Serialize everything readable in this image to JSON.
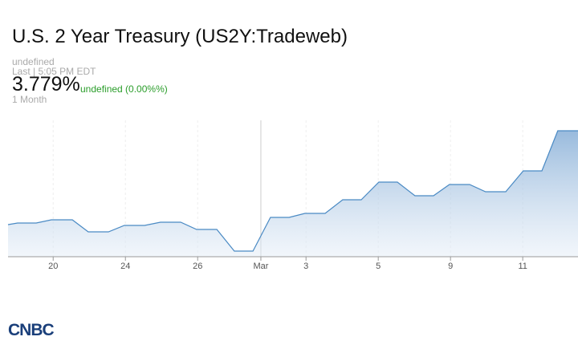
{
  "header": {
    "title": "U.S. 2 Year Treasury (US2Y:Tradeweb)",
    "status": "undefined",
    "time": "Last | 5:05 PM EDT",
    "last": "3.779%",
    "change": "undefined (0.00%%)",
    "period": "1 Month"
  },
  "logo": "CNBC",
  "chart_data": {
    "type": "line",
    "x": [
      0,
      0.53,
      1.56,
      2.4,
      3.56,
      4.44,
      5.56,
      6.44,
      7.56,
      8.44,
      9.56,
      10.44,
      11.56,
      12.53,
      13.56,
      14.53,
      15.56,
      16.44,
      17.56,
      18.53,
      19.56,
      20.53,
      21.56,
      22.53,
      23.56,
      24.44,
      25.56,
      26.44,
      27.56,
      28.53,
      29.56,
      30.44,
      31.56
    ],
    "values": [
      3.662,
      3.664,
      3.664,
      3.668,
      3.668,
      3.653,
      3.653,
      3.661,
      3.661,
      3.665,
      3.665,
      3.656,
      3.656,
      3.629,
      3.629,
      3.671,
      3.671,
      3.676,
      3.676,
      3.693,
      3.693,
      3.715,
      3.715,
      3.698,
      3.698,
      3.712,
      3.712,
      3.703,
      3.703,
      3.729,
      3.729,
      3.779,
      3.779
    ],
    "color": "#4a8ac4",
    "xlim": [
      0,
      31.56
    ],
    "xticks": [
      {
        "value": 2.5,
        "label": "20"
      },
      {
        "value": 6.5,
        "label": "24"
      },
      {
        "value": 10.5,
        "label": "26"
      },
      {
        "value": 14,
        "label": "Mar"
      },
      {
        "value": 16.5,
        "label": "3"
      },
      {
        "value": 20.5,
        "label": "5"
      },
      {
        "value": 24.5,
        "label": "9"
      },
      {
        "value": 28.5,
        "label": "11"
      }
    ],
    "ylim": [
      3.622,
      3.792
    ],
    "grid": true
  }
}
